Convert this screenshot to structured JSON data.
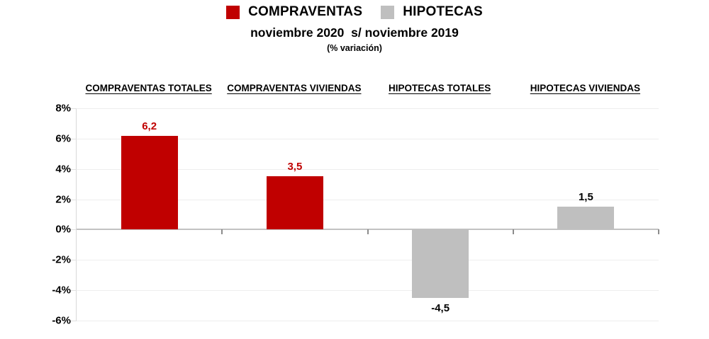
{
  "legend": {
    "items": [
      {
        "label": "COMPRAVENTAS",
        "color": "#c00000"
      },
      {
        "label": "HIPOTECAS",
        "color": "#bfbfbf"
      }
    ]
  },
  "chart_data": {
    "type": "bar",
    "title": "noviembre 2020  s/ noviembre 2019",
    "subtitle": "(% variación)",
    "categories": [
      "COMPRAVENTAS TOTALES",
      "COMPRAVENTAS VIVIENDAS",
      "HIPOTECAS TOTALES",
      "HIPOTECAS VIVIENDAS"
    ],
    "values": [
      6.2,
      3.5,
      -4.5,
      1.5
    ],
    "value_labels": [
      "6,2",
      "3,5",
      "-4,5",
      "1,5"
    ],
    "series": [
      {
        "name": "COMPRAVENTAS",
        "color": "#c00000",
        "value_label_color": "#c00000"
      },
      {
        "name": "HIPOTECAS",
        "color": "#bfbfbf",
        "value_label_color": "#000000"
      }
    ],
    "bar_series": [
      "COMPRAVENTAS",
      "COMPRAVENTAS",
      "HIPOTECAS",
      "HIPOTECAS"
    ],
    "ylim": [
      -6,
      8
    ],
    "ytick_step": 2,
    "ytick_suffix": "%",
    "grid": true,
    "legend_position": "top",
    "colors": {
      "gridline": "#eeeeee",
      "zero_line": "#c2c2c2",
      "axis_line": "#d9d9d9",
      "category_tick": "#8c8c8c",
      "text": "#000000"
    }
  }
}
